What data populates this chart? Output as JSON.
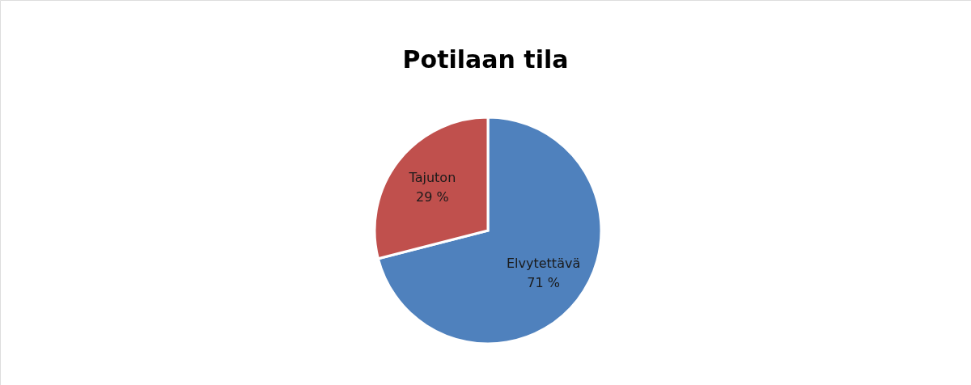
{
  "chart_data": {
    "type": "pie",
    "title": "Potilaan tila",
    "categories": [
      "Elvytettävä",
      "Tajuton"
    ],
    "values": [
      71,
      29
    ],
    "value_labels": [
      "71 %",
      "29 %"
    ],
    "colors": [
      "#4f81bd",
      "#c0504d"
    ],
    "legend": false
  }
}
